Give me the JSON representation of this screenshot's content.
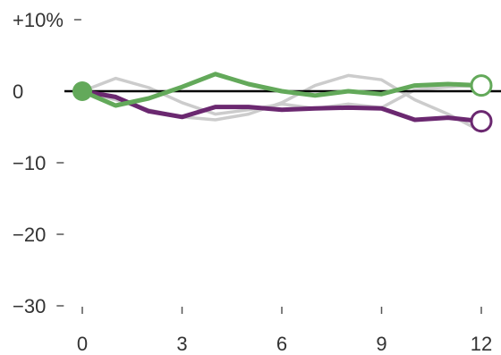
{
  "chart_data": {
    "type": "line",
    "title": "",
    "xlabel": "",
    "ylabel": "",
    "xlim": [
      0,
      12
    ],
    "ylim": [
      -30,
      10
    ],
    "x_ticks": [
      0,
      3,
      6,
      9,
      12
    ],
    "x_tick_labels": [
      "0",
      "3",
      "6",
      "9",
      "12"
    ],
    "y_ticks": [
      10,
      0,
      -10,
      -20,
      -30
    ],
    "y_tick_labels": [
      "+10%",
      "0",
      "−10",
      "−20",
      "−30"
    ],
    "grid": false,
    "zero_line": true,
    "colors": {
      "purple": "#6b2870",
      "green": "#63a95a",
      "grey": "#cccccc",
      "zero_line": "#000000",
      "ticks": "#555555"
    },
    "series": [
      {
        "role": "background",
        "color": "#cccccc",
        "x": [
          0,
          1,
          2,
          3,
          4,
          5,
          6,
          7,
          8,
          9,
          10,
          11,
          12
        ],
        "values": [
          0,
          1.8,
          0.5,
          -1.6,
          -3.2,
          -2.6,
          -1.8,
          -2.4,
          -1.8,
          -2.3,
          0.2,
          0.6,
          0.8
        ]
      },
      {
        "role": "background",
        "color": "#cccccc",
        "x": [
          0,
          1,
          2,
          3,
          4,
          5,
          6,
          7,
          8,
          9,
          10,
          11,
          12
        ],
        "values": [
          0,
          -1.2,
          -2.6,
          -3.6,
          -4.0,
          -3.2,
          -1.6,
          0.8,
          2.2,
          1.6,
          -1.2,
          -3.2,
          -5.6
        ]
      },
      {
        "role": "highlight",
        "color": "#6b2870",
        "x": [
          0,
          1,
          2,
          3,
          4,
          5,
          6,
          7,
          8,
          9,
          10,
          11,
          12
        ],
        "values": [
          0,
          -0.8,
          -2.8,
          -3.6,
          -2.2,
          -2.2,
          -2.6,
          -2.4,
          -2.3,
          -2.4,
          -4.0,
          -3.7,
          -4.2
        ]
      },
      {
        "role": "highlight",
        "color": "#63a95a",
        "x": [
          0,
          1,
          2,
          3,
          4,
          5,
          6,
          7,
          8,
          9,
          10,
          11,
          12
        ],
        "values": [
          0,
          -2.0,
          -1.0,
          0.6,
          2.4,
          1.0,
          0.0,
          -0.6,
          0.0,
          -0.4,
          0.8,
          1.0,
          0.8
        ]
      }
    ]
  }
}
